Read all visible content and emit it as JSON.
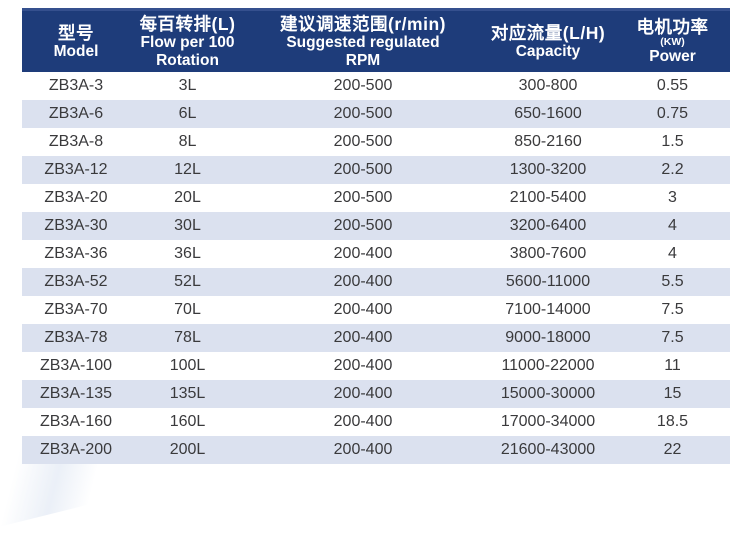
{
  "colors": {
    "header_bg": "#1e3c7a",
    "header_top_edge": "#35508e",
    "header_text": "#ffffff",
    "stripe_bg": "#dbe1ef",
    "row_bg": "#ffffff",
    "body_text": "#3a3a3c",
    "page_bg": "#ffffff"
  },
  "table": {
    "columns": [
      {
        "zh": "型号",
        "en1": "Model"
      },
      {
        "zh": "每百转排(L)",
        "en1": "Flow per 100",
        "en2": "Rotation"
      },
      {
        "zh": "建议调速范围(r/min)",
        "en1": "Suggested regulated",
        "en2": "RPM"
      },
      {
        "zh": "对应流量(L/H)",
        "en1": "Capacity"
      },
      {
        "zh": "电机功率",
        "kw": "(KW)",
        "en1": "Power"
      }
    ],
    "rows": [
      [
        "ZB3A-3",
        "3L",
        "200-500",
        "300-800",
        "0.55"
      ],
      [
        "ZB3A-6",
        "6L",
        "200-500",
        "650-1600",
        "0.75"
      ],
      [
        "ZB3A-8",
        "8L",
        "200-500",
        "850-2160",
        "1.5"
      ],
      [
        "ZB3A-12",
        "12L",
        "200-500",
        "1300-3200",
        "2.2"
      ],
      [
        "ZB3A-20",
        "20L",
        "200-500",
        "2100-5400",
        "3"
      ],
      [
        "ZB3A-30",
        "30L",
        "200-500",
        "3200-6400",
        "4"
      ],
      [
        "ZB3A-36",
        "36L",
        "200-400",
        "3800-7600",
        "4"
      ],
      [
        "ZB3A-52",
        "52L",
        "200-400",
        "5600-11000",
        "5.5"
      ],
      [
        "ZB3A-70",
        "70L",
        "200-400",
        "7100-14000",
        "7.5"
      ],
      [
        "ZB3A-78",
        "78L",
        "200-400",
        "9000-18000",
        "7.5"
      ],
      [
        "ZB3A-100",
        "100L",
        "200-400",
        "11000-22000",
        "11"
      ],
      [
        "ZB3A-135",
        "135L",
        "200-400",
        "15000-30000",
        "15"
      ],
      [
        "ZB3A-160",
        "160L",
        "200-400",
        "17000-34000",
        "18.5"
      ],
      [
        "ZB3A-200",
        "200L",
        "200-400",
        "21600-43000",
        "22"
      ]
    ]
  },
  "chart_data": {
    "type": "table",
    "title": "",
    "columns": [
      "型号 Model",
      "每百转排(L) Flow per 100 Rotation",
      "建议调速范围(r/min) Suggested regulated RPM",
      "对应流量(L/H) Capacity",
      "电机功率(KW) Power"
    ],
    "rows": [
      [
        "ZB3A-3",
        "3L",
        "200-500",
        "300-800",
        "0.55"
      ],
      [
        "ZB3A-6",
        "6L",
        "200-500",
        "650-1600",
        "0.75"
      ],
      [
        "ZB3A-8",
        "8L",
        "200-500",
        "850-2160",
        "1.5"
      ],
      [
        "ZB3A-12",
        "12L",
        "200-500",
        "1300-3200",
        "2.2"
      ],
      [
        "ZB3A-20",
        "20L",
        "200-500",
        "2100-5400",
        "3"
      ],
      [
        "ZB3A-30",
        "30L",
        "200-500",
        "3200-6400",
        "4"
      ],
      [
        "ZB3A-36",
        "36L",
        "200-400",
        "3800-7600",
        "4"
      ],
      [
        "ZB3A-52",
        "52L",
        "200-400",
        "5600-11000",
        "5.5"
      ],
      [
        "ZB3A-70",
        "70L",
        "200-400",
        "7100-14000",
        "7.5"
      ],
      [
        "ZB3A-78",
        "78L",
        "200-400",
        "9000-18000",
        "7.5"
      ],
      [
        "ZB3A-100",
        "100L",
        "200-400",
        "11000-22000",
        "11"
      ],
      [
        "ZB3A-135",
        "135L",
        "200-400",
        "15000-30000",
        "15"
      ],
      [
        "ZB3A-160",
        "160L",
        "200-400",
        "17000-34000",
        "18.5"
      ],
      [
        "ZB3A-200",
        "200L",
        "200-400",
        "21600-43000",
        "22"
      ]
    ]
  }
}
